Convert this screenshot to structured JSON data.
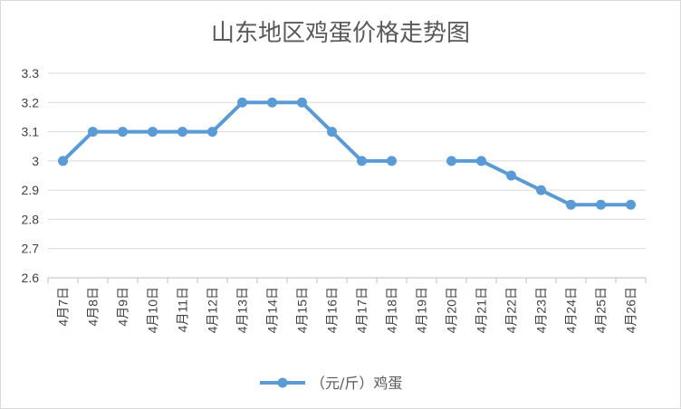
{
  "chart_data": {
    "type": "line",
    "title": "山东地区鸡蛋价格走势图",
    "xlabel": "",
    "ylabel": "",
    "categories": [
      "4月7日",
      "4月8日",
      "4月9日",
      "4月10日",
      "4月11日",
      "4月12日",
      "4月13日",
      "4月14日",
      "4月15日",
      "4月16日",
      "4月17日",
      "4月18日",
      "4月19日",
      "4月20日",
      "4月21日",
      "4月22日",
      "4月23日",
      "4月24日",
      "4月25日",
      "4月26日"
    ],
    "series": [
      {
        "name": "（元/斤）鸡蛋",
        "color": "#5b9bd5",
        "values": [
          3.0,
          3.1,
          3.1,
          3.1,
          3.1,
          3.1,
          3.2,
          3.2,
          3.2,
          3.1,
          3.0,
          3.0,
          null,
          3.0,
          3.0,
          2.95,
          2.9,
          2.85,
          2.85,
          2.85
        ]
      }
    ],
    "ylim": [
      2.6,
      3.3
    ],
    "yticks": [
      "2.6",
      "2.7",
      "2.8",
      "2.9",
      "3",
      "3.1",
      "3.2",
      "3.3"
    ],
    "grid": true,
    "legend_position": "bottom"
  }
}
